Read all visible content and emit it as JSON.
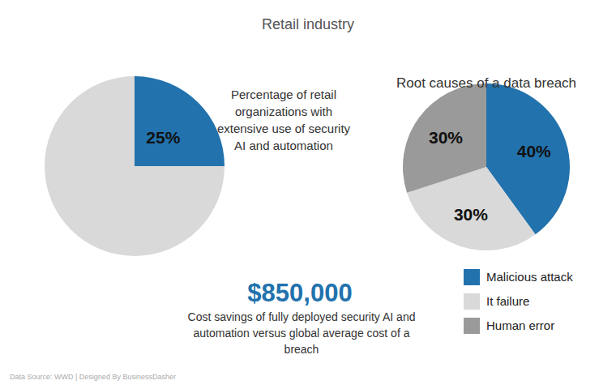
{
  "title": "Retail industry",
  "chart_data": [
    {
      "type": "pie",
      "title": "Percentage of retail organizations with extensive use of security AI and automation",
      "values": [
        25,
        75
      ],
      "value_labels": [
        "25%",
        null
      ],
      "colors": [
        "#2272ad",
        "#d9d9d9"
      ],
      "data_labels": true
    },
    {
      "type": "pie",
      "title": "Root causes of a data breach",
      "categories": [
        "Malicious attack",
        "It failure",
        "Human error"
      ],
      "values": [
        40,
        30,
        30
      ],
      "value_labels": [
        "40%",
        "30%",
        "30%"
      ],
      "colors": [
        "#2272ad",
        "#d9d9d9",
        "#9a9a9a"
      ],
      "data_labels": true,
      "legend": "right"
    }
  ],
  "highlight": {
    "label": "$850,000",
    "caption": "Cost savings of fully deployed security AI and automation versus global average cost of a breach"
  },
  "source": "Data Source: WWD | Designed By BusinessDasher"
}
